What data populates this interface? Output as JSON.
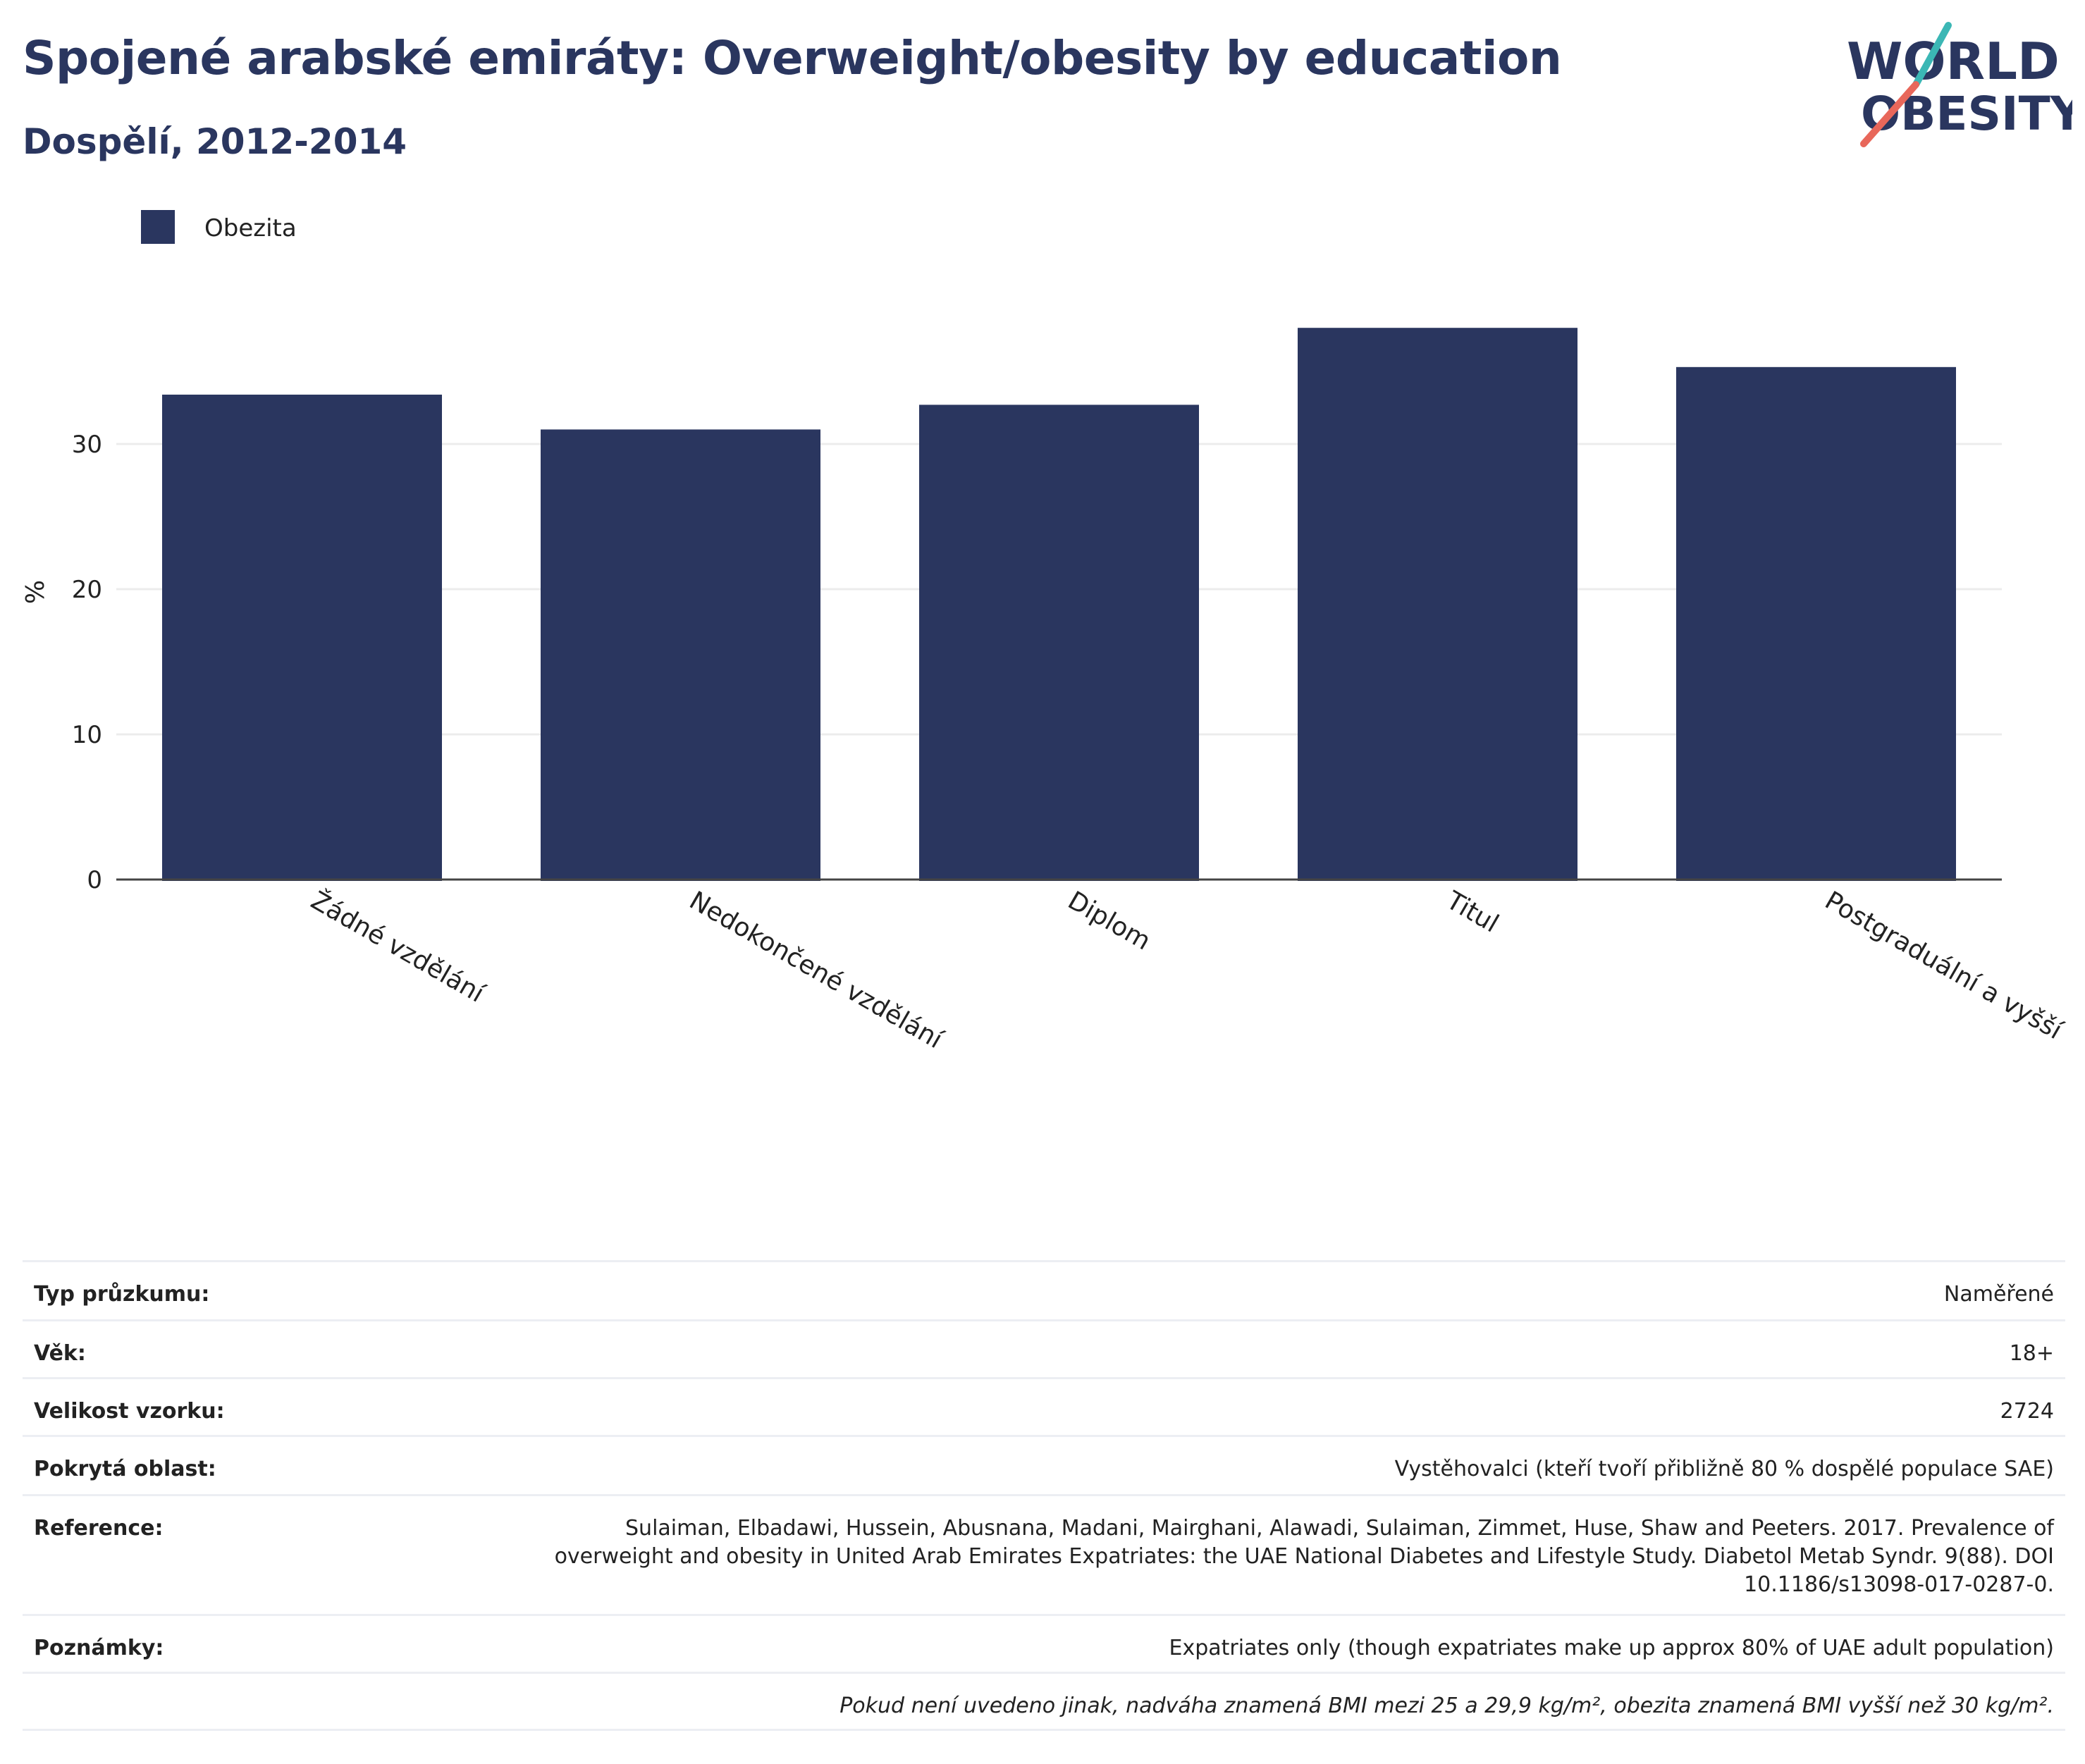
{
  "header": {
    "title": "Spojené arabské emiráty: Overweight/obesity by education",
    "subtitle": "Dospělí, 2012-2014",
    "logo_line1": "WORLD",
    "logo_line2": "OBESITY"
  },
  "colors": {
    "bar": "#2a365f",
    "title": "#2a365f",
    "logo_teal": "#3bb7b5",
    "logo_coral": "#e8675a",
    "grid": "#ececec",
    "axis": "#444444"
  },
  "chart_data": {
    "type": "bar",
    "categories": [
      "Žádné vzdělání",
      "Nedokončené vzdělání",
      "Diplom",
      "Titul",
      "Postgraduální a vyšší"
    ],
    "series": [
      {
        "name": "Obezita",
        "values": [
          33.4,
          31.0,
          32.7,
          38.0,
          35.3
        ]
      }
    ],
    "ylabel": "%",
    "ylim": [
      0,
      40
    ],
    "yticks": [
      "0",
      "10",
      "20",
      "30"
    ],
    "legend_position": "top-left",
    "grid": true
  },
  "info_rows": [
    {
      "label": "Typ průzkumu:",
      "value": "Naměřené"
    },
    {
      "label": "Věk:",
      "value": "18+"
    },
    {
      "label": "Velikost vzorku:",
      "value": "2724"
    },
    {
      "label": "Pokrytá oblast:",
      "value": "Vystěhovalci (kteří tvoří přibližně 80 % dospělé populace SAE)"
    },
    {
      "label": "Reference:",
      "value": "Sulaiman, Elbadawi, Hussein, Abusnana, Madani, Mairghani, Alawadi, Sulaiman, Zimmet, Huse, Shaw and Peeters. 2017. Prevalence of overweight and obesity in United Arab Emirates Expatriates: the UAE National Diabetes and Lifestyle Study. Diabetol Metab Syndr. 9(88). DOI 10.1186/s13098-017-0287-0."
    },
    {
      "label": "Poznámky:",
      "value": "Expatriates only (though expatriates make up approx 80% of UAE adult population)"
    }
  ],
  "footnote": "Pokud není uvedeno jinak, nadváha znamená BMI mezi 25 a 29,9 kg/m², obezita znamená BMI vyšší než 30 kg/m²."
}
